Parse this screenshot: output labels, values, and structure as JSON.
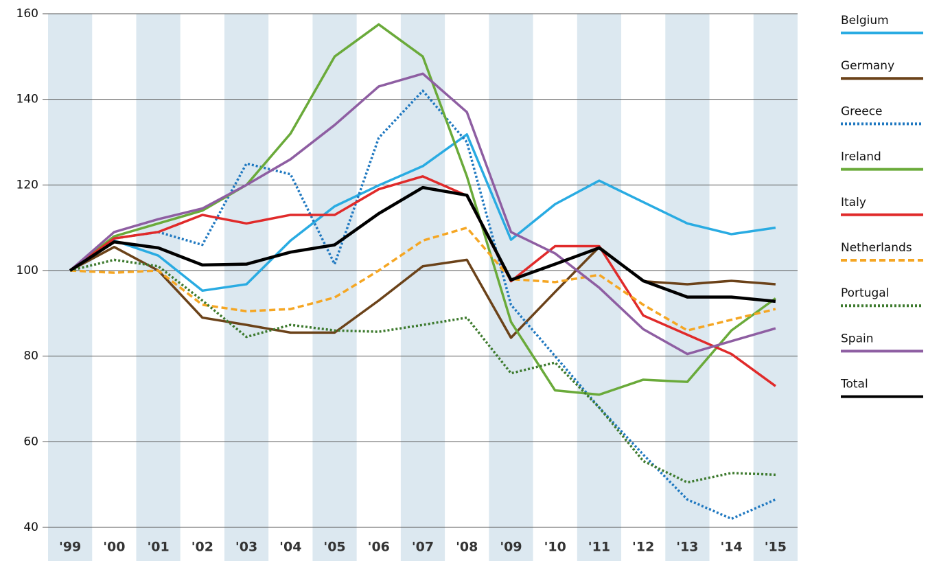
{
  "chart_data": {
    "type": "line",
    "categories": [
      "'99",
      "'00",
      "'01",
      "'02",
      "'03",
      "'04",
      "'05",
      "'06",
      "'07",
      "'08",
      "'09",
      "'10",
      "'11",
      "'12",
      "'13",
      "'14",
      "'15"
    ],
    "ylim": [
      40,
      160
    ],
    "yticks": [
      40,
      60,
      80,
      100,
      120,
      140,
      160
    ],
    "grid": true,
    "legend": "right",
    "series": [
      {
        "name": "Belgium",
        "color": "#29abe2",
        "style": "solid",
        "values": [
          100,
          107,
          103.5,
          95.3,
          96.8,
          107,
          115,
          119.9,
          124.4,
          131.8,
          107.2,
          115.5,
          121,
          116,
          111,
          108.5,
          110
        ]
      },
      {
        "name": "Germany",
        "color": "#6b4219",
        "style": "solid",
        "values": [
          100,
          105.5,
          100,
          89,
          87.3,
          85.5,
          85.5,
          93,
          101,
          102.5,
          84.3,
          95,
          105.5,
          97.5,
          96.8,
          97.6,
          96.8
        ]
      },
      {
        "name": "Greece",
        "color": "#1f78c0",
        "style": "dotted",
        "values": [
          100,
          107.5,
          109,
          106,
          125,
          122.5,
          101.5,
          131,
          142,
          130,
          92,
          80,
          68,
          57,
          46.5,
          42,
          46.5
        ]
      },
      {
        "name": "Ireland",
        "color": "#6aaa3a",
        "style": "solid",
        "values": [
          100,
          108,
          111,
          114,
          120,
          132,
          150,
          157.5,
          150,
          122,
          88,
          72,
          71,
          74.5,
          74,
          86,
          93.5
        ]
      },
      {
        "name": "Italy",
        "color": "#e02a2a",
        "style": "solid",
        "values": [
          100,
          107.5,
          109,
          113,
          111,
          113,
          113,
          119,
          122,
          117.5,
          97.5,
          105.7,
          105.7,
          89.5,
          85,
          80.5,
          73
        ]
      },
      {
        "name": "Netherlands",
        "color": "#f5a623",
        "style": "dashed",
        "values": [
          100,
          99.5,
          100,
          92,
          90.5,
          91,
          93.7,
          100,
          107,
          110,
          98,
          97.3,
          99,
          92,
          86,
          88.5,
          91
        ]
      },
      {
        "name": "Portugal",
        "color": "#3d7a2e",
        "style": "dotted",
        "values": [
          100,
          102.5,
          101,
          93,
          84.5,
          87.3,
          86,
          85.7,
          87.3,
          89,
          76,
          78.5,
          68,
          55.5,
          50.5,
          52.7,
          52.3
        ]
      },
      {
        "name": "Spain",
        "color": "#8e5ea2",
        "style": "solid",
        "values": [
          100,
          109,
          112,
          114.5,
          120,
          126,
          134,
          143,
          146,
          137,
          109,
          104,
          96,
          86.3,
          80.5,
          83.5,
          86.5
        ]
      },
      {
        "name": "Total",
        "color": "#000000",
        "style": "solid",
        "values": [
          100,
          106.7,
          105.3,
          101.3,
          101.5,
          104.3,
          106,
          113.3,
          119.4,
          117.6,
          97.8,
          101.5,
          105.3,
          97.6,
          93.8,
          93.8,
          92.8
        ]
      }
    ]
  }
}
